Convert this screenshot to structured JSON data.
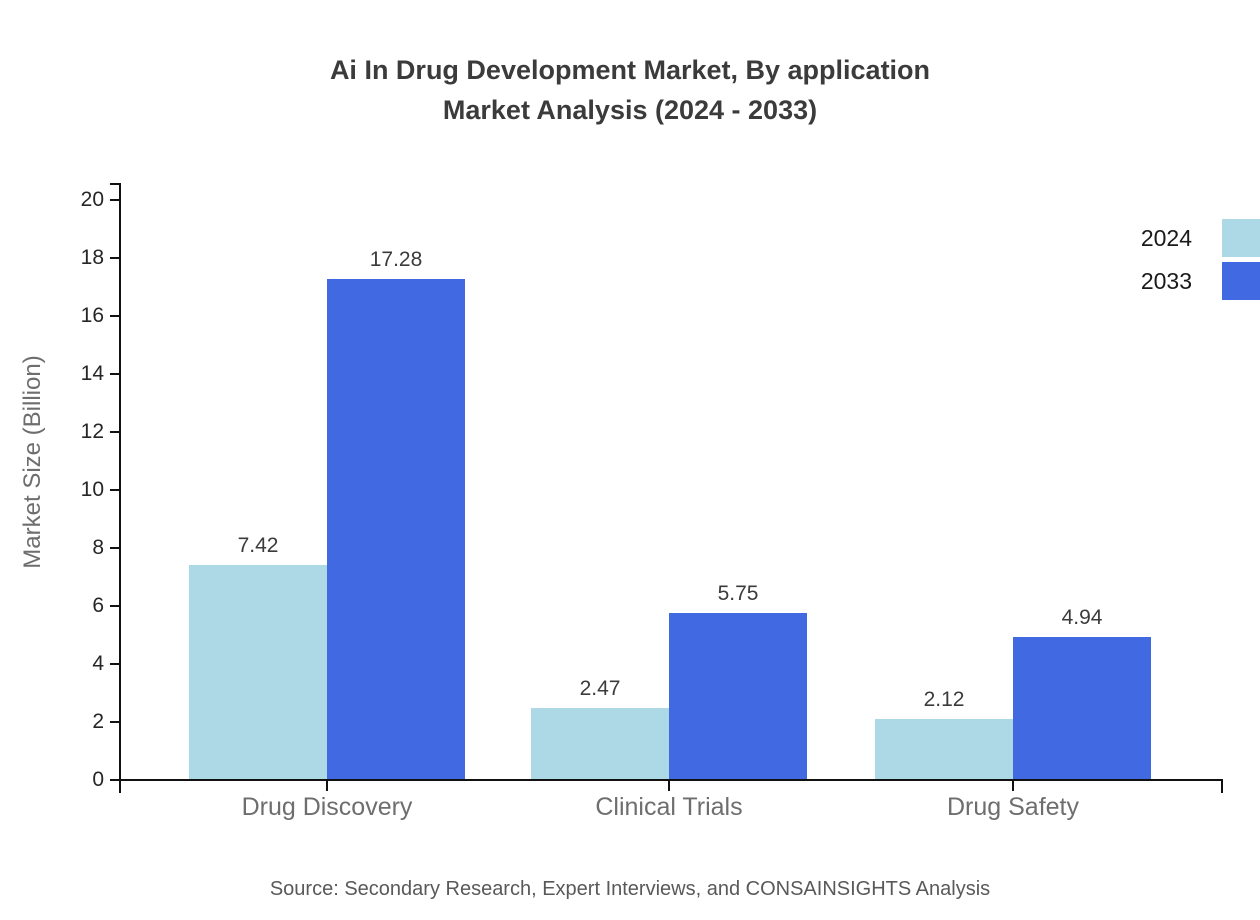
{
  "title": {
    "line1": "Ai In Drug Development Market, By application",
    "line2": "Market Analysis (2024 - 2033)"
  },
  "source": "Source: Secondary Research, Expert Interviews, and CONSAINSIGHTS Analysis",
  "chart_data": {
    "type": "bar",
    "title": "Ai In Drug Development Market, By application Market Analysis (2024 - 2033)",
    "categories": [
      "Drug Discovery",
      "Clinical Trials",
      "Drug Safety"
    ],
    "series": [
      {
        "name": "2024",
        "color": "#ADD8E6",
        "values": [
          7.42,
          2.47,
          2.12
        ]
      },
      {
        "name": "2033",
        "color": "#4169E1",
        "values": [
          17.28,
          5.75,
          4.94
        ]
      }
    ],
    "xlabel": "",
    "ylabel": "Market Size (Billion)",
    "ylim": [
      0,
      20
    ],
    "ytick_step": 2,
    "yticks": [
      0,
      2,
      4,
      6,
      8,
      10,
      12,
      14,
      16,
      18,
      20
    ],
    "grid": false,
    "legend_position": "top-right",
    "value_labels": true,
    "axis_color": "#111111",
    "text_color": "#3b3b3b"
  }
}
